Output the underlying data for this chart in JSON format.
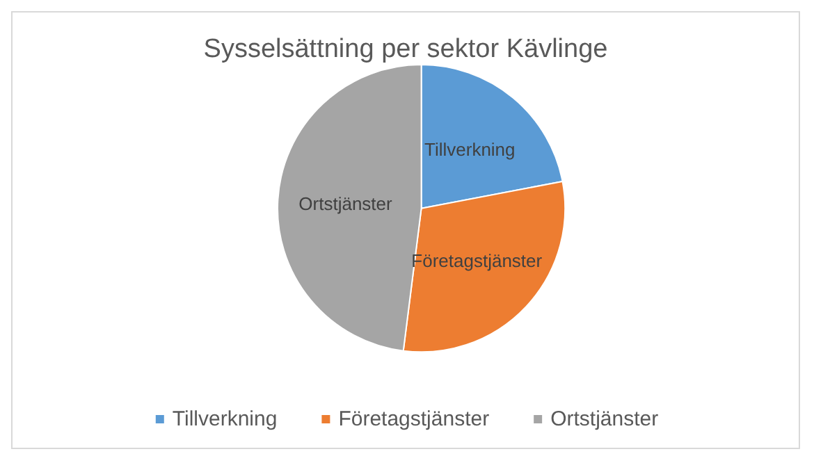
{
  "chart_data": {
    "type": "pie",
    "title": "Sysselsättning per sektor Kävlinge",
    "categories": [
      "Tillverkning",
      "Företagstjänster",
      "Ortstjänster"
    ],
    "values": [
      22,
      30,
      48
    ],
    "colors": [
      "#5b9bd5",
      "#ed7d31",
      "#a5a5a5"
    ],
    "legend": "bottom"
  }
}
